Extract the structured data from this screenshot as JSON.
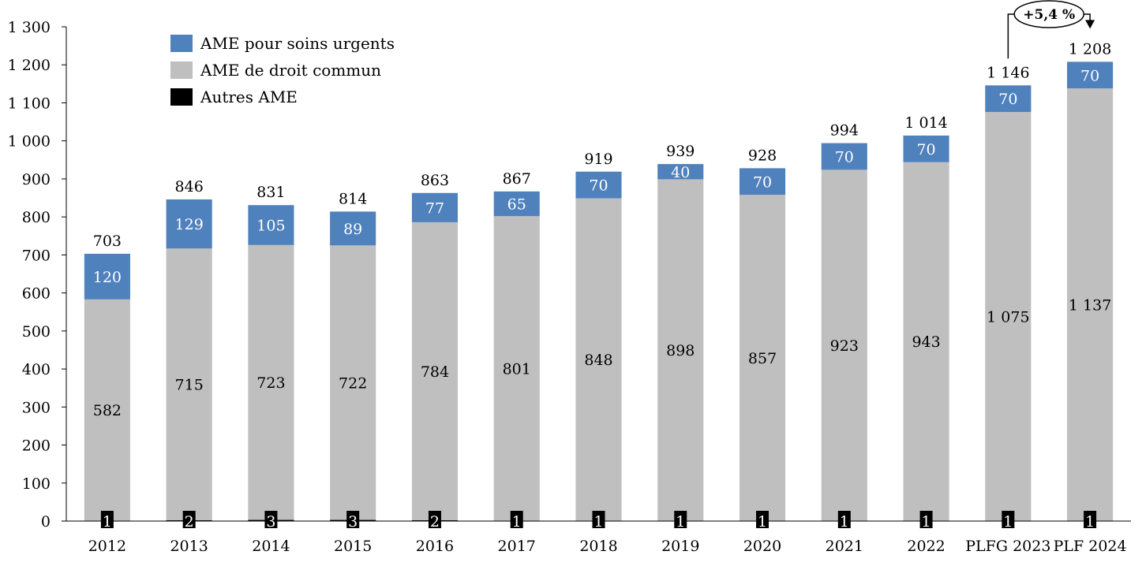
{
  "chart_data": {
    "type": "bar",
    "stacked": true,
    "categories": [
      "2012",
      "2013",
      "2014",
      "2015",
      "2016",
      "2017",
      "2018",
      "2019",
      "2020",
      "2021",
      "2022",
      "PLFG 2023",
      "PLF 2024"
    ],
    "ylim": [
      0,
      1300
    ],
    "yticks": [
      0,
      100,
      200,
      300,
      400,
      500,
      600,
      700,
      800,
      900,
      1000,
      1100,
      1200,
      1300
    ],
    "ytick_labels": [
      "0",
      "100",
      "200",
      "300",
      "400",
      "500",
      "600",
      "700",
      "800",
      "900",
      "1 000",
      "1 100",
      "1 200",
      "1 300"
    ],
    "grid": false,
    "legend_position": "top-left",
    "series": [
      {
        "name": "Autres AME",
        "color": "#000000",
        "values": [
          1,
          2,
          3,
          3,
          2,
          1,
          1,
          1,
          1,
          1,
          1,
          1,
          1
        ],
        "labels": [
          "1",
          "2",
          "3",
          "3",
          "2",
          "1",
          "1",
          "1",
          "1",
          "1",
          "1",
          "1",
          "1"
        ]
      },
      {
        "name": "AME de droit commun",
        "color": "#bfbfbf",
        "values": [
          582,
          715,
          723,
          722,
          784,
          801,
          848,
          898,
          857,
          923,
          943,
          1075,
          1137
        ],
        "labels": [
          "582",
          "715",
          "723",
          "722",
          "784",
          "801",
          "848",
          "898",
          "857",
          "923",
          "943",
          "1 075",
          "1 137"
        ]
      },
      {
        "name": "AME pour soins urgents",
        "color": "#4f81bd",
        "values": [
          120,
          129,
          105,
          89,
          77,
          65,
          70,
          40,
          70,
          70,
          70,
          70,
          70
        ],
        "labels": [
          "120",
          "129",
          "105",
          "89",
          "77",
          "65",
          "70",
          "40",
          "70",
          "70",
          "70",
          "70",
          "70"
        ]
      }
    ],
    "totals": [
      703,
      846,
      831,
      814,
      863,
      867,
      919,
      939,
      928,
      994,
      1014,
      1146,
      1208
    ],
    "total_labels": [
      "703",
      "846",
      "831",
      "814",
      "863",
      "867",
      "919",
      "939",
      "928",
      "994",
      "1 014",
      "1 146",
      "1 208"
    ],
    "legend_entries": [
      "AME pour soins urgents",
      "AME de droit commun",
      "Autres AME"
    ],
    "annotation": {
      "text": "+5,4 %",
      "from": "PLFG 2023",
      "to": "PLF 2024"
    }
  }
}
